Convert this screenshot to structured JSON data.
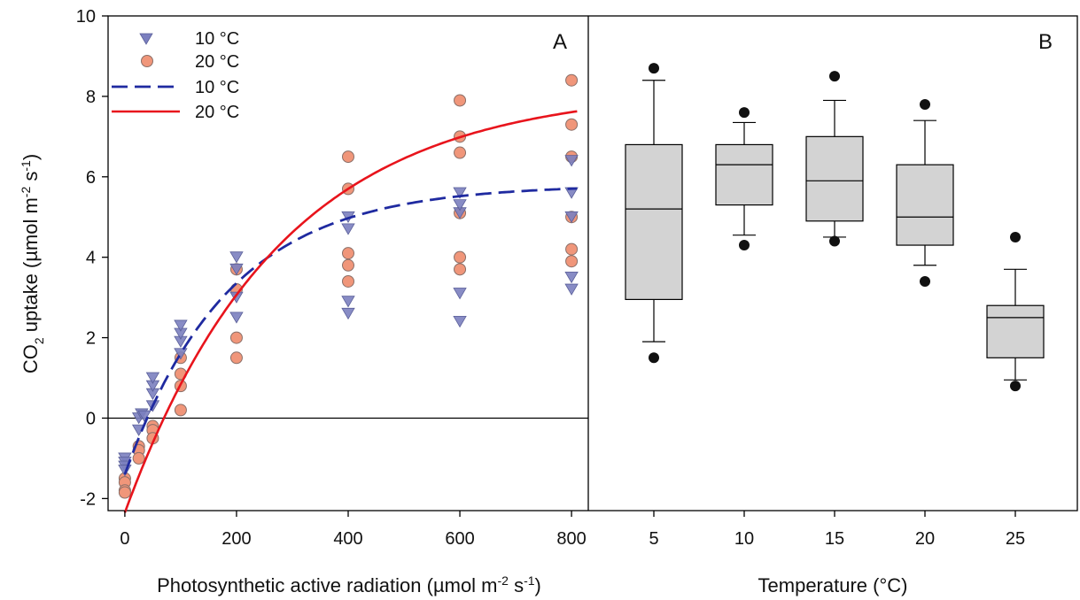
{
  "chart_data": [
    {
      "type": "scatter",
      "panel_label": "A",
      "xlabel_pre": "Photosynthetic active radiation (µmol m",
      "xlabel_sup1": "-2",
      "xlabel_mid": " s",
      "xlabel_sup2": "-1",
      "xlabel_post": ")",
      "ylabel_pre": "CO",
      "ylabel_sub": "2",
      "ylabel_mid": " uptake (µmol m",
      "ylabel_sup1": "-2",
      "ylabel_mid2": " s",
      "ylabel_sup2": "-1",
      "ylabel_post": ")",
      "xlim": [
        -30,
        830
      ],
      "ylim": [
        -2.3,
        10
      ],
      "x_ticks": [
        0,
        200,
        400,
        600,
        800
      ],
      "x_tick_labels": [
        "0",
        "200",
        "400",
        "600",
        "800"
      ],
      "y_ticks": [
        -2,
        0,
        2,
        4,
        6,
        8,
        10
      ],
      "y_tick_labels": [
        "-2",
        "0",
        "2",
        "4",
        "6",
        "8",
        "10"
      ],
      "zero_line": true,
      "legend_position": "top-left",
      "legend": [
        {
          "label": "10 °C",
          "kind": "triangle",
          "color": "#7b7fbf"
        },
        {
          "label": "20 °C",
          "kind": "circle",
          "color": "#f0967a"
        },
        {
          "label": "10 °C",
          "kind": "dashed-line",
          "color": "#1f2aa0"
        },
        {
          "label": "20 °C",
          "kind": "solid-line",
          "color": "#e8141c"
        }
      ],
      "series": [
        {
          "label": "10 °C",
          "marker": "triangle",
          "color": "#7b7fbf",
          "points": [
            [
              0,
              -1.0
            ],
            [
              0,
              -1.1
            ],
            [
              0,
              -1.2
            ],
            [
              0,
              -1.3
            ],
            [
              25,
              -0.3
            ],
            [
              25,
              0.0
            ],
            [
              30,
              0.1
            ],
            [
              35,
              0.05
            ],
            [
              50,
              0.3
            ],
            [
              50,
              0.6
            ],
            [
              50,
              0.8
            ],
            [
              50,
              1.0
            ],
            [
              100,
              1.6
            ],
            [
              100,
              1.9
            ],
            [
              100,
              2.1
            ],
            [
              100,
              2.3
            ],
            [
              200,
              2.5
            ],
            [
              200,
              3.0
            ],
            [
              200,
              3.7
            ],
            [
              200,
              4.0
            ],
            [
              400,
              2.6
            ],
            [
              400,
              2.9
            ],
            [
              400,
              4.7
            ],
            [
              400,
              5.0
            ],
            [
              600,
              2.4
            ],
            [
              600,
              3.1
            ],
            [
              600,
              5.1
            ],
            [
              600,
              5.3
            ],
            [
              600,
              5.6
            ],
            [
              800,
              3.2
            ],
            [
              800,
              3.5
            ],
            [
              800,
              5.0
            ],
            [
              800,
              5.6
            ],
            [
              800,
              6.4
            ]
          ]
        },
        {
          "label": "20 °C",
          "marker": "circle",
          "color": "#f0967a",
          "points": [
            [
              0,
              -1.5
            ],
            [
              0,
              -1.6
            ],
            [
              0,
              -1.8
            ],
            [
              0,
              -1.85
            ],
            [
              25,
              -0.7
            ],
            [
              25,
              -0.8
            ],
            [
              25,
              -1.0
            ],
            [
              50,
              -0.2
            ],
            [
              50,
              -0.3
            ],
            [
              50,
              -0.5
            ],
            [
              100,
              0.2
            ],
            [
              100,
              0.8
            ],
            [
              100,
              1.1
            ],
            [
              100,
              1.5
            ],
            [
              200,
              1.5
            ],
            [
              200,
              2.0
            ],
            [
              200,
              3.2
            ],
            [
              200,
              3.7
            ],
            [
              400,
              3.4
            ],
            [
              400,
              3.8
            ],
            [
              400,
              4.1
            ],
            [
              400,
              5.7
            ],
            [
              400,
              6.5
            ],
            [
              600,
              3.7
            ],
            [
              600,
              4.0
            ],
            [
              600,
              5.1
            ],
            [
              600,
              6.6
            ],
            [
              600,
              7.0
            ],
            [
              600,
              7.9
            ],
            [
              800,
              3.9
            ],
            [
              800,
              4.2
            ],
            [
              800,
              5.0
            ],
            [
              800,
              6.5
            ],
            [
              800,
              7.3
            ],
            [
              800,
              8.4
            ]
          ]
        }
      ],
      "fits": [
        {
          "label": "10 °C",
          "style": "dashed",
          "color": "#1f2aa0",
          "Pmax": 5.8,
          "k": 0.0054,
          "x0": 40,
          "x_range": [
            0,
            810
          ]
        },
        {
          "label": "20 °C",
          "style": "solid",
          "color": "#e8141c",
          "Pmax": 8.2,
          "k": 0.0036,
          "x0": 70,
          "x_range": [
            0,
            810
          ]
        }
      ]
    },
    {
      "type": "box",
      "panel_label": "B",
      "xlabel": "Temperature (°C)",
      "categories": [
        "5",
        "10",
        "15",
        "20",
        "25"
      ],
      "box_fill": "#d3d3d3",
      "boxes": [
        {
          "category": "5",
          "whisker_low": 1.9,
          "q1": 2.95,
          "median": 5.2,
          "q3": 6.8,
          "whisker_high": 8.4,
          "outliers": [
            1.5,
            8.7
          ]
        },
        {
          "category": "10",
          "whisker_low": 4.55,
          "q1": 5.3,
          "median": 6.3,
          "q3": 6.8,
          "whisker_high": 7.35,
          "outliers": [
            4.3,
            7.6
          ]
        },
        {
          "category": "15",
          "whisker_low": 4.5,
          "q1": 4.9,
          "median": 5.9,
          "q3": 7.0,
          "whisker_high": 7.9,
          "outliers": [
            4.4,
            8.5
          ]
        },
        {
          "category": "20",
          "whisker_low": 3.8,
          "q1": 4.3,
          "median": 5.0,
          "q3": 6.3,
          "whisker_high": 7.4,
          "outliers": [
            3.4,
            7.8
          ]
        },
        {
          "category": "25",
          "whisker_low": 0.95,
          "q1": 1.5,
          "median": 2.5,
          "q3": 2.8,
          "whisker_high": 3.7,
          "outliers": [
            0.8,
            4.5
          ]
        }
      ]
    }
  ]
}
